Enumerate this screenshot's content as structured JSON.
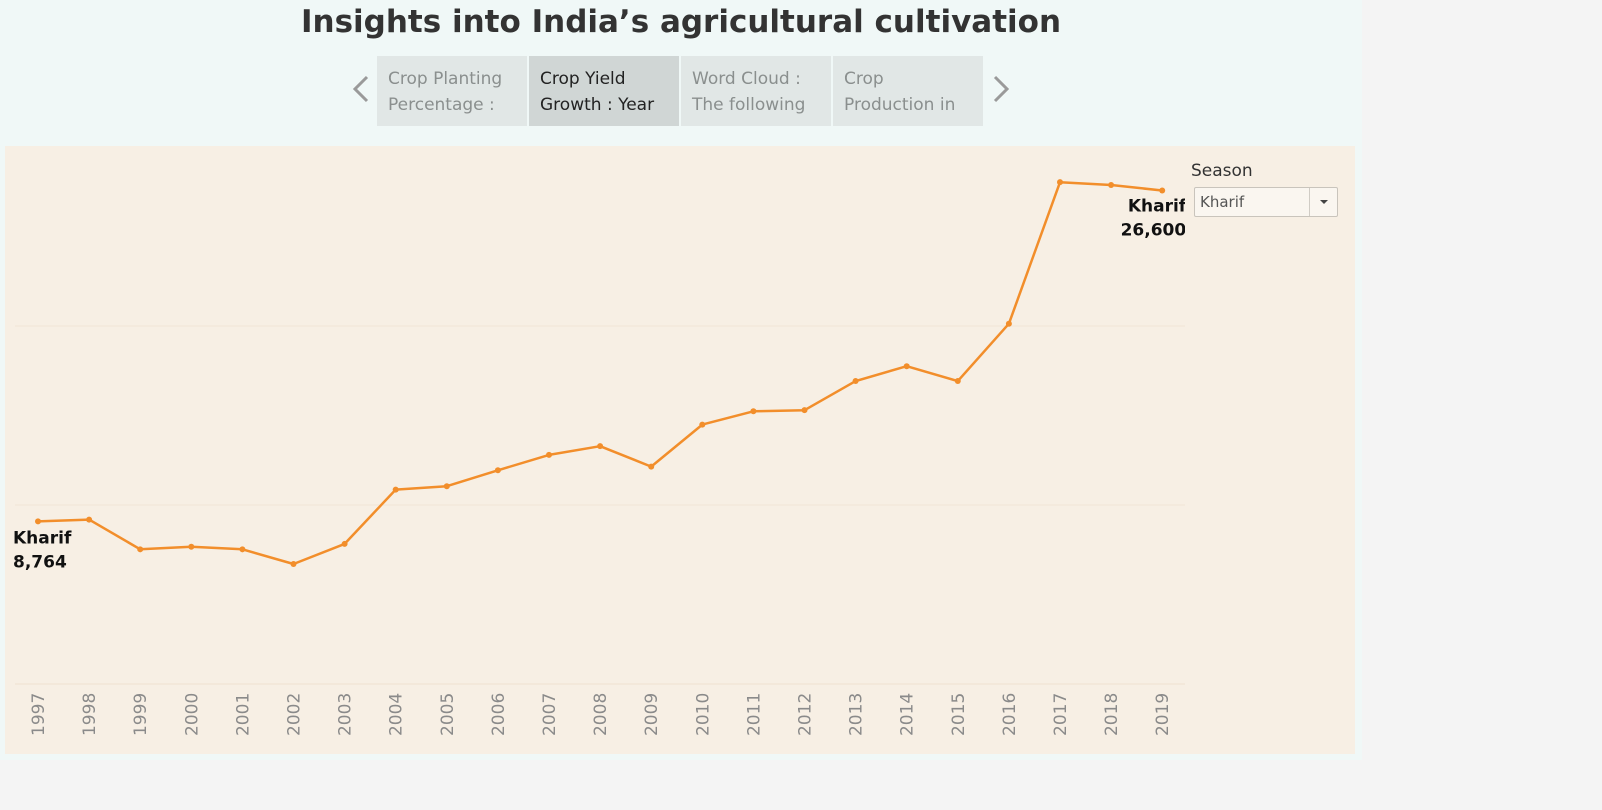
{
  "page": {
    "title": "Insights into India’s agricultural cultivation"
  },
  "story_nav": {
    "tabs": [
      {
        "line1": "Crop Planting",
        "line2": "Percentage :",
        "active": false
      },
      {
        "line1": "Crop Yield",
        "line2": "Growth : Year",
        "active": true
      },
      {
        "line1": "Word Cloud :",
        "line2": "The following",
        "active": false
      },
      {
        "line1": "Crop",
        "line2": "Production in",
        "active": false
      }
    ],
    "prev_icon": "chevron-left-icon",
    "next_icon": "chevron-right-icon"
  },
  "filter": {
    "label": "Season",
    "selected": "Kharif",
    "icon": "caret-down-icon"
  },
  "chart_data": {
    "type": "line",
    "series": [
      {
        "color": "#f28e2b",
        "values": [
          8764,
          8860,
          7260,
          7400,
          7260,
          6470,
          7550,
          10480,
          10660,
          11520,
          12350,
          12820,
          11720,
          13980,
          14700,
          14760,
          16330,
          17130,
          16330,
          19420,
          27050,
          26900,
          26600
        ]
      }
    ],
    "x": [
      "1997",
      "1998",
      "1999",
      "2000",
      "2001",
      "2002",
      "2003",
      "2004",
      "2005",
      "2006",
      "2007",
      "2008",
      "2009",
      "2010",
      "2011",
      "2012",
      "2013",
      "2014",
      "2015",
      "2016",
      "2017",
      "2018",
      "2019"
    ],
    "ylim": [
      0,
      29000
    ],
    "grid": true,
    "annotations": [
      {
        "x": "1997",
        "label": "Kharif",
        "value": "8,764"
      },
      {
        "x": "2019",
        "label": "Kharif",
        "value": "26,600"
      }
    ]
  }
}
